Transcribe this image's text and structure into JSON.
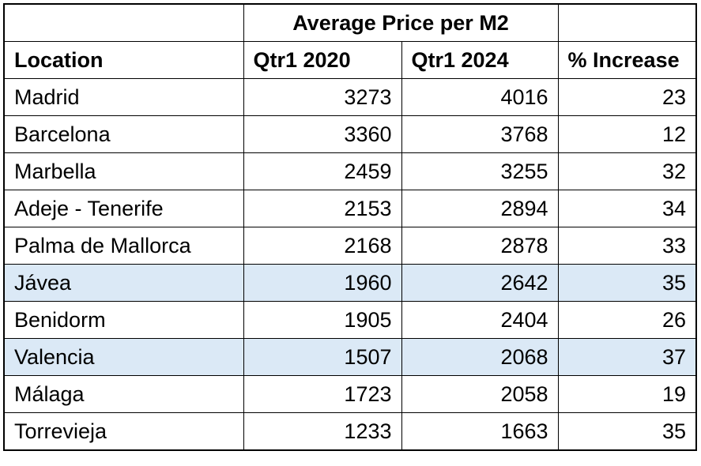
{
  "table": {
    "merged_header": "Average Price per M2",
    "columns": {
      "location": "Location",
      "q1_2020": "Qtr1 2020",
      "q1_2024": "Qtr1 2024",
      "increase": "% Increase"
    },
    "rows": [
      {
        "location": "Madrid",
        "q1_2020": "3273",
        "q1_2024": "4016",
        "increase": "23",
        "highlight": false
      },
      {
        "location": "Barcelona",
        "q1_2020": "3360",
        "q1_2024": "3768",
        "increase": "12",
        "highlight": false
      },
      {
        "location": "Marbella",
        "q1_2020": "2459",
        "q1_2024": "3255",
        "increase": "32",
        "highlight": false
      },
      {
        "location": "Adeje - Tenerife",
        "q1_2020": "2153",
        "q1_2024": "2894",
        "increase": "34",
        "highlight": false
      },
      {
        "location": "Palma de Mallorca",
        "q1_2020": "2168",
        "q1_2024": "2878",
        "increase": "33",
        "highlight": false
      },
      {
        "location": "Jávea",
        "q1_2020": "1960",
        "q1_2024": "2642",
        "increase": "35",
        "highlight": true
      },
      {
        "location": "Benidorm",
        "q1_2020": "1905",
        "q1_2024": "2404",
        "increase": "26",
        "highlight": false
      },
      {
        "location": "Valencia",
        "q1_2020": "1507",
        "q1_2024": "2068",
        "increase": "37",
        "highlight": true
      },
      {
        "location": "Málaga",
        "q1_2020": "1723",
        "q1_2024": "2058",
        "increase": "19",
        "highlight": false
      },
      {
        "location": "Torrevieja",
        "q1_2020": "1233",
        "q1_2024": "1663",
        "increase": "35",
        "highlight": false
      }
    ],
    "colors": {
      "highlight_row": "#dbe9f6",
      "border": "#000000",
      "text": "#000000",
      "background": "#ffffff"
    }
  }
}
